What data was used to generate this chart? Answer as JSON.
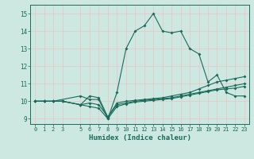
{
  "xlabel": "Humidex (Indice chaleur)",
  "bg_color": "#cce8e0",
  "line_color": "#1a6b5a",
  "grid_color": "#e8c8c8",
  "xlim": [
    -0.5,
    23.5
  ],
  "ylim": [
    8.7,
    15.5
  ],
  "xticks": [
    0,
    1,
    2,
    3,
    5,
    6,
    7,
    8,
    9,
    10,
    11,
    12,
    13,
    14,
    15,
    16,
    17,
    18,
    19,
    20,
    21,
    22,
    23
  ],
  "yticks": [
    9,
    10,
    11,
    12,
    13,
    14,
    15
  ],
  "line1_x": [
    0,
    1,
    2,
    5,
    6,
    7,
    8,
    9,
    10,
    11,
    12,
    13,
    14,
    15,
    16,
    17,
    18,
    19,
    20,
    21,
    22,
    23
  ],
  "line1_y": [
    10.0,
    10.0,
    10.0,
    10.3,
    10.1,
    10.1,
    9.0,
    10.5,
    13.0,
    14.0,
    14.3,
    15.0,
    14.0,
    13.9,
    14.0,
    13.0,
    12.7,
    11.1,
    11.5,
    10.5,
    10.3,
    10.3
  ],
  "line2_x": [
    0,
    1,
    2,
    3,
    5,
    6,
    7,
    8,
    9,
    10,
    11,
    12,
    13,
    14,
    15,
    16,
    17,
    18,
    19,
    20,
    21,
    22,
    23
  ],
  "line2_y": [
    10.0,
    10.0,
    10.0,
    10.0,
    9.8,
    10.3,
    10.2,
    9.1,
    9.9,
    10.0,
    10.05,
    10.1,
    10.15,
    10.2,
    10.3,
    10.4,
    10.5,
    10.7,
    10.9,
    11.1,
    11.2,
    11.3,
    11.4
  ],
  "line3_x": [
    0,
    1,
    2,
    3,
    5,
    6,
    7,
    8,
    9,
    10,
    11,
    12,
    13,
    14,
    15,
    16,
    17,
    18,
    19,
    20,
    21,
    22,
    23
  ],
  "line3_y": [
    10.0,
    10.0,
    10.0,
    10.0,
    9.8,
    9.9,
    9.8,
    9.1,
    9.8,
    9.9,
    10.0,
    10.05,
    10.1,
    10.15,
    10.2,
    10.3,
    10.4,
    10.5,
    10.6,
    10.7,
    10.8,
    10.9,
    11.0
  ],
  "line4_x": [
    0,
    1,
    2,
    3,
    5,
    6,
    7,
    8,
    9,
    10,
    11,
    12,
    13,
    14,
    15,
    16,
    17,
    18,
    19,
    20,
    21,
    22,
    23
  ],
  "line4_y": [
    10.0,
    10.0,
    10.0,
    10.0,
    9.8,
    9.7,
    9.6,
    9.0,
    9.7,
    9.85,
    9.95,
    10.0,
    10.05,
    10.1,
    10.15,
    10.25,
    10.35,
    10.45,
    10.55,
    10.65,
    10.7,
    10.75,
    10.85
  ]
}
